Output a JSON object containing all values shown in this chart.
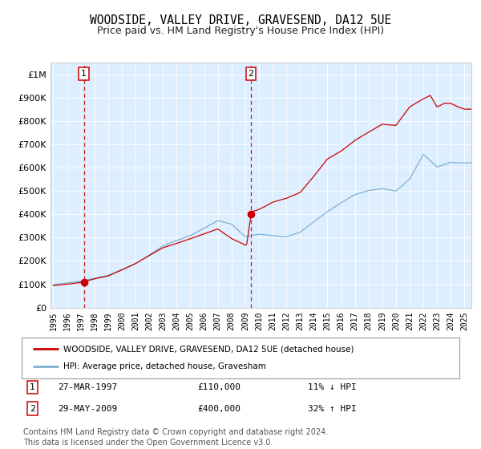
{
  "title": "WOODSIDE, VALLEY DRIVE, GRAVESEND, DA12 5UE",
  "subtitle": "Price paid vs. HM Land Registry's House Price Index (HPI)",
  "title_fontsize": 10.5,
  "subtitle_fontsize": 9,
  "background_color": "#ffffff",
  "plot_bg_color": "#ddeeff",
  "grid_color": "#ffffff",
  "red_line_color": "#cc0000",
  "blue_line_color": "#7bafd4",
  "marker_color": "#cc0000",
  "dashed_line_color": "#cc0000",
  "ylim": [
    0,
    1050000
  ],
  "xlim_start": 1994.8,
  "xlim_end": 2025.5,
  "yticks": [
    0,
    100000,
    200000,
    300000,
    400000,
    500000,
    600000,
    700000,
    800000,
    900000,
    1000000
  ],
  "ytick_labels": [
    "£0",
    "£100K",
    "£200K",
    "£300K",
    "£400K",
    "£500K",
    "£600K",
    "£700K",
    "£800K",
    "£900K",
    "£1M"
  ],
  "xticks": [
    1995,
    1996,
    1997,
    1998,
    1999,
    2000,
    2001,
    2002,
    2003,
    2004,
    2005,
    2006,
    2007,
    2008,
    2009,
    2010,
    2011,
    2012,
    2013,
    2014,
    2015,
    2016,
    2017,
    2018,
    2019,
    2020,
    2021,
    2022,
    2023,
    2024,
    2025
  ],
  "sale1_x": 1997.24,
  "sale1_y": 110000,
  "sale1_label": "1",
  "sale2_x": 2009.41,
  "sale2_y": 400000,
  "sale2_label": "2",
  "legend_red": "WOODSIDE, VALLEY DRIVE, GRAVESEND, DA12 5UE (detached house)",
  "legend_blue": "HPI: Average price, detached house, Gravesham",
  "annotation1_date": "27-MAR-1997",
  "annotation1_price": "£110,000",
  "annotation1_hpi": "11% ↓ HPI",
  "annotation2_date": "29-MAY-2009",
  "annotation2_price": "£400,000",
  "annotation2_hpi": "32% ↑ HPI",
  "footer": "Contains HM Land Registry data © Crown copyright and database right 2024.\nThis data is licensed under the Open Government Licence v3.0.",
  "footer_fontsize": 7
}
